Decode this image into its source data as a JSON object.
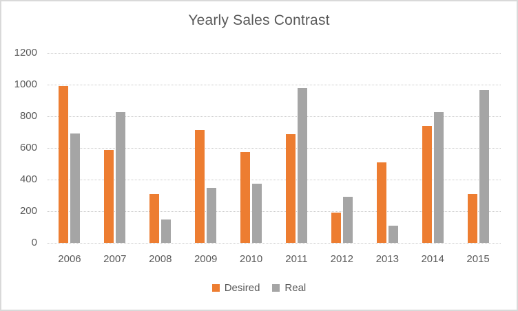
{
  "window": {
    "background": "#FFFFFF",
    "border_color": "#D9D9D9"
  },
  "colors": {
    "text": "#595959",
    "gridline": "#C9C9C9",
    "desired": "#ED7D31",
    "real": "#A5A5A5"
  },
  "chart_data": {
    "type": "bar",
    "title": "Yearly Sales Contrast",
    "categories": [
      "2006",
      "2007",
      "2008",
      "2009",
      "2010",
      "2011",
      "2012",
      "2013",
      "2014",
      "2015"
    ],
    "series": [
      {
        "name": "Desired",
        "color": "#ED7D31",
        "values": [
          990,
          585,
          310,
          715,
          575,
          685,
          190,
          510,
          740,
          310
        ]
      },
      {
        "name": "Real",
        "color": "#A5A5A5",
        "values": [
          690,
          825,
          150,
          350,
          375,
          980,
          290,
          110,
          825,
          965
        ]
      }
    ],
    "xlabel": "",
    "ylabel": "",
    "ylim": [
      0,
      1200
    ],
    "yticks": [
      0,
      200,
      400,
      600,
      800,
      1000,
      1200
    ],
    "grid": true,
    "legend_position": "bottom"
  }
}
